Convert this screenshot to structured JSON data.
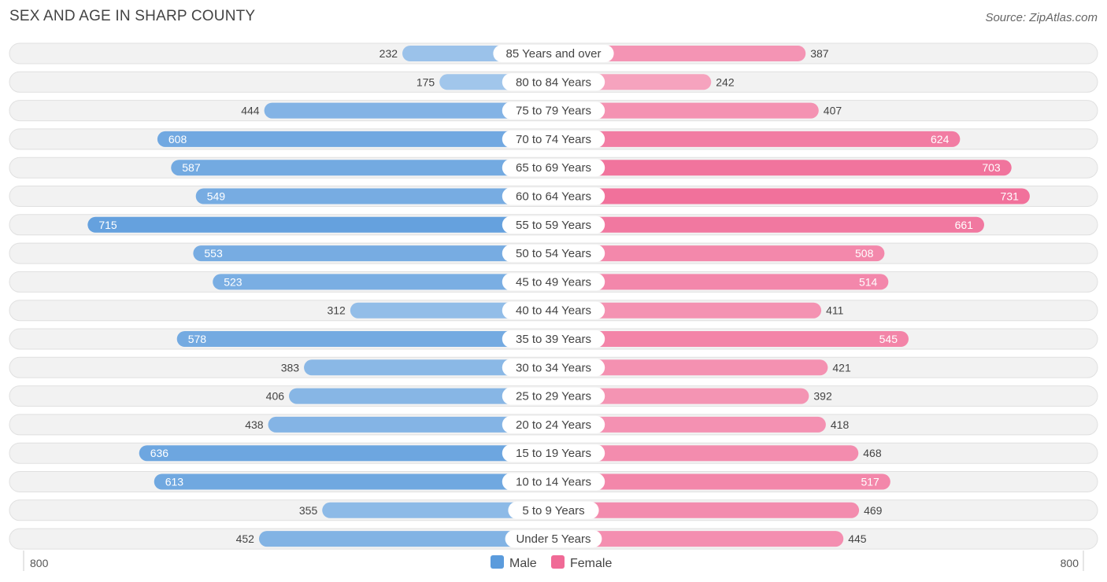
{
  "header": {
    "title": "SEX AND AGE IN SHARP COUNTY",
    "source": "Source: ZipAtlas.com"
  },
  "chart_data": {
    "type": "bar",
    "orientation": "horizontal-diverging",
    "categories": [
      "85 Years and over",
      "80 to 84 Years",
      "75 to 79 Years",
      "70 to 74 Years",
      "65 to 69 Years",
      "60 to 64 Years",
      "55 to 59 Years",
      "50 to 54 Years",
      "45 to 49 Years",
      "40 to 44 Years",
      "35 to 39 Years",
      "30 to 34 Years",
      "25 to 29 Years",
      "20 to 24 Years",
      "15 to 19 Years",
      "10 to 14 Years",
      "5 to 9 Years",
      "Under 5 Years"
    ],
    "series": [
      {
        "name": "Male",
        "color": "#5b9bdc",
        "values": [
          232,
          175,
          444,
          608,
          587,
          549,
          715,
          553,
          523,
          312,
          578,
          383,
          406,
          438,
          636,
          613,
          355,
          452
        ]
      },
      {
        "name": "Female",
        "color": "#f06a96",
        "values": [
          387,
          242,
          407,
          624,
          703,
          731,
          661,
          508,
          514,
          411,
          545,
          421,
          392,
          418,
          468,
          517,
          469,
          445
        ]
      }
    ],
    "axis": {
      "left_label": "800",
      "right_label": "800",
      "max": 800
    },
    "legend": {
      "placement": "bottom-center"
    }
  }
}
